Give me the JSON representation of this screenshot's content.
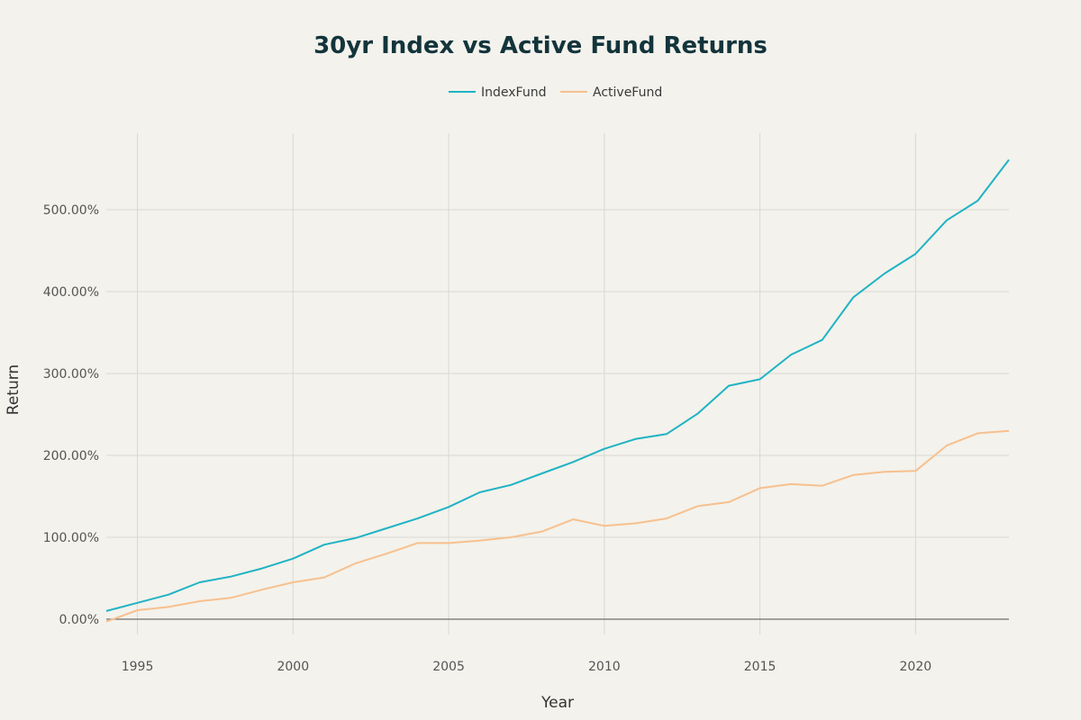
{
  "chart_data": {
    "type": "line",
    "title": "30yr Index vs Active Fund Returns",
    "xlabel": "Year",
    "ylabel": "Return",
    "xlim": [
      1994,
      2023
    ],
    "ylim": [
      -0.2,
      5.8
    ],
    "x_ticks": [
      1995,
      2000,
      2005,
      2010,
      2015,
      2020
    ],
    "x_tick_labels": [
      "1995",
      "2000",
      "2005",
      "2010",
      "2015",
      "2020"
    ],
    "y_ticks": [
      0,
      1,
      2,
      3,
      4,
      5
    ],
    "y_tick_labels": [
      "0.00%",
      "100.00%",
      "200.00%",
      "300.00%",
      "400.00%",
      "500.00%"
    ],
    "grid": true,
    "legend_position": "top-center",
    "x": [
      1994,
      1995,
      1996,
      1997,
      1998,
      1999,
      2000,
      2001,
      2002,
      2003,
      2004,
      2005,
      2006,
      2007,
      2008,
      2009,
      2010,
      2011,
      2012,
      2013,
      2014,
      2015,
      2016,
      2017,
      2018,
      2019,
      2020,
      2021,
      2022,
      2023
    ],
    "series": [
      {
        "name": "IndexFund",
        "color": "#1fb3c4",
        "values": [
          0.1,
          0.2,
          0.3,
          0.45,
          0.52,
          0.62,
          0.74,
          0.91,
          0.99,
          1.11,
          1.23,
          1.37,
          1.55,
          1.64,
          1.78,
          1.92,
          2.08,
          2.2,
          2.26,
          2.51,
          2.85,
          2.93,
          3.23,
          3.41,
          3.93,
          4.22,
          4.46,
          4.87,
          5.11,
          5.61
        ]
      },
      {
        "name": "ActiveFund",
        "color": "#f7c08e",
        "values": [
          -0.03,
          0.11,
          0.15,
          0.22,
          0.26,
          0.36,
          0.45,
          0.51,
          0.68,
          0.8,
          0.93,
          0.93,
          0.96,
          1.0,
          1.07,
          1.22,
          1.14,
          1.17,
          1.23,
          1.38,
          1.43,
          1.6,
          1.65,
          1.63,
          1.76,
          1.8,
          1.81,
          2.12,
          2.27,
          2.3
        ]
      }
    ]
  }
}
